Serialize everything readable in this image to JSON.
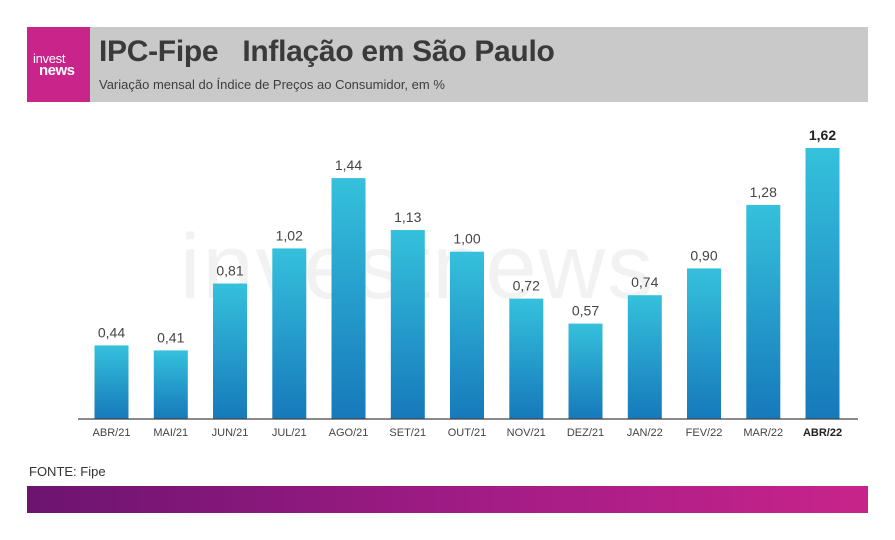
{
  "header": {
    "logo_line1": "invest",
    "logo_line2": "news",
    "title": "IPC-Fipe   Inflação em São Paulo",
    "subtitle": "Variação mensal do Índice de Preços ao Consumidor, em %"
  },
  "watermark": "investnews",
  "source": "FONTE: Fipe",
  "colors": {
    "bar_top": "#35c1dc",
    "bar_bottom": "#1679bb",
    "brand": "#c8248a",
    "header_bg": "#c9c9c9"
  },
  "chart_data": {
    "type": "bar",
    "categories": [
      "ABR/21",
      "MAI/21",
      "JUN/21",
      "JUL/21",
      "AGO/21",
      "SET/21",
      "OUT/21",
      "NOV/21",
      "DEZ/21",
      "JAN/22",
      "FEV/22",
      "MAR/22",
      "ABR/22"
    ],
    "values": [
      0.44,
      0.41,
      0.81,
      1.02,
      1.44,
      1.13,
      1.0,
      0.72,
      0.57,
      0.74,
      0.9,
      1.28,
      1.62
    ],
    "value_labels": [
      "0,44",
      "0,41",
      "0,81",
      "1,02",
      "1,44",
      "1,13",
      "1,00",
      "0,72",
      "0,57",
      "0,74",
      "0,90",
      "1,28",
      "1,62"
    ],
    "highlight_index": 12,
    "title": "IPC-Fipe   Inflação em São Paulo",
    "subtitle": "Variação mensal do Índice de Preços ao Consumidor, em %",
    "xlabel": "",
    "ylabel": "",
    "ylim": [
      0,
      1.62
    ],
    "grid": false,
    "legend": "none"
  }
}
